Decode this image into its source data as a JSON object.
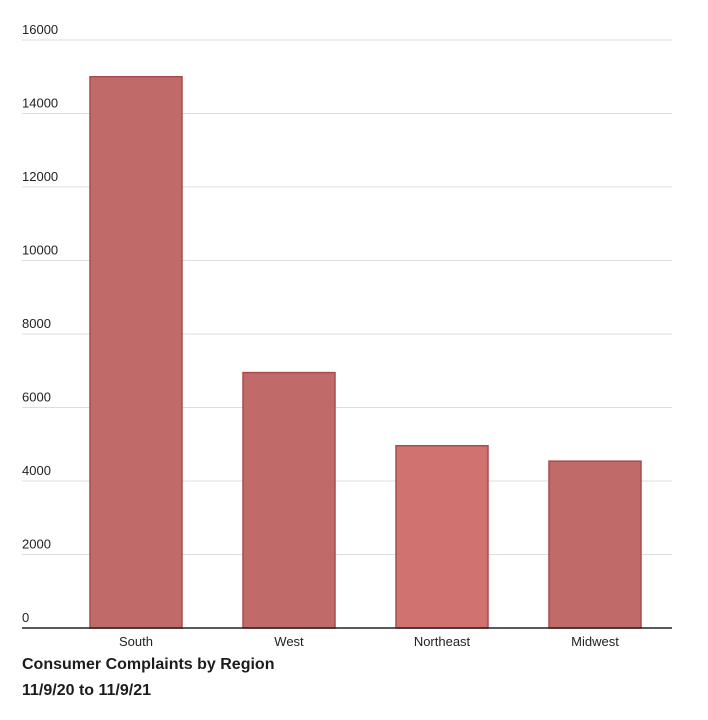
{
  "chart_data": {
    "type": "bar",
    "title": "Consumer Complaints by Region",
    "subtitle": "11/9/20 to 11/9/21",
    "xlabel": "",
    "ylabel": "",
    "categories": [
      "South",
      "West",
      "Northeast",
      "Midwest"
    ],
    "values": [
      15000,
      6950,
      4960,
      4540
    ],
    "ylim": [
      0,
      16000
    ],
    "yticks": [
      "0",
      "2000",
      "4000",
      "6000",
      "8000",
      "10000",
      "12000",
      "14000",
      "16000"
    ],
    "grid": true,
    "legend": "none",
    "colors": {
      "bar_fill": [
        "#c06a6a",
        "#c06a6a",
        "#d07370",
        "#c06a6a"
      ],
      "bar_stroke": "#a84c4c",
      "grid": "#dddddd",
      "axis": "#222222"
    }
  }
}
